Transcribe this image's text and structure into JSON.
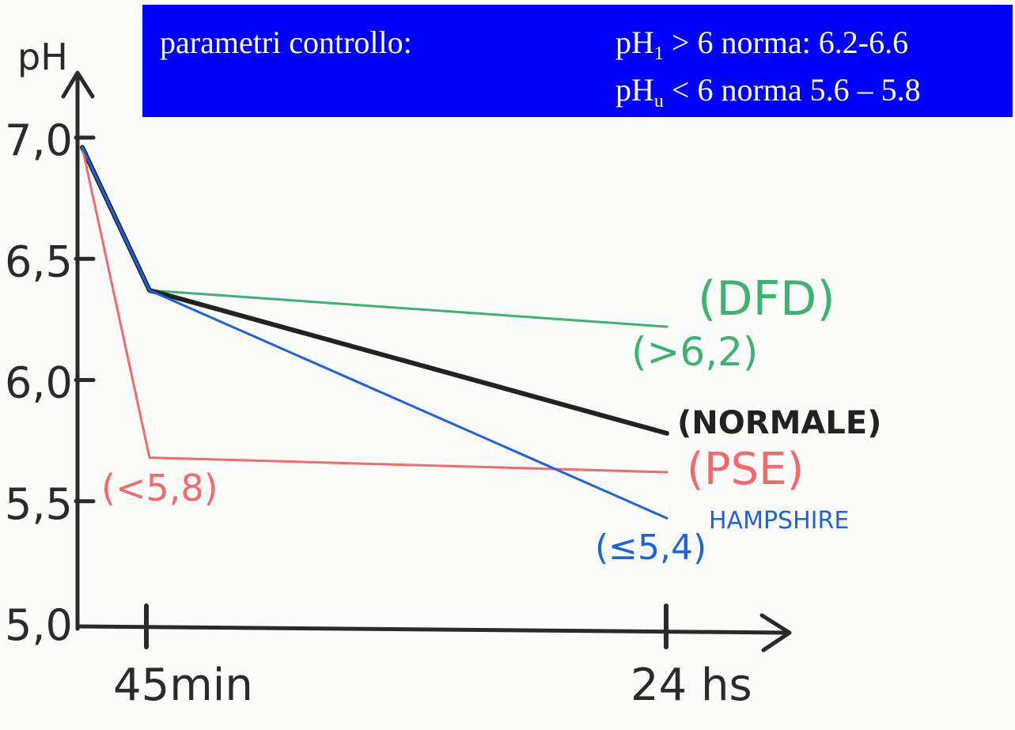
{
  "banner": {
    "label": "parametri controllo:",
    "line1": {
      "prefix": "pH",
      "sub": "1",
      "rest": " > 6 norma: 6.2-6.6"
    },
    "line2": {
      "prefix": "pH",
      "sub": "u",
      "rest": " < 6 norma 5.6 – 5.8"
    }
  },
  "chart_data": {
    "type": "line",
    "ylabel": "pH",
    "xlabel": "",
    "yticks": [
      "7,0",
      "6,5",
      "6,0",
      "5,5",
      "5,0"
    ],
    "ylim": [
      5.0,
      7.0
    ],
    "xticks": [
      {
        "x": "45 min",
        "label": "45min"
      },
      {
        "x": "24 h",
        "label": "24 hs"
      }
    ],
    "x": [
      "0",
      "45 min",
      "24 h"
    ],
    "series": [
      {
        "name": "(DFD)",
        "note": "(>6,2)",
        "color": "#3cb371",
        "values": [
          6.96,
          6.37,
          6.22
        ]
      },
      {
        "name": "(NORMALE)",
        "color": "#222222",
        "values": [
          6.96,
          6.37,
          5.78
        ]
      },
      {
        "name": "(PSE)",
        "note": "(<5,8)",
        "color": "#f26b6b",
        "values": [
          6.96,
          5.68,
          5.62
        ]
      },
      {
        "name": "HAMPSHIRE",
        "note": "(≤5,4)",
        "color": "#1f63d8",
        "values": [
          6.96,
          6.37,
          5.43
        ]
      }
    ],
    "grid": false,
    "legend": "inline labels at line ends"
  }
}
